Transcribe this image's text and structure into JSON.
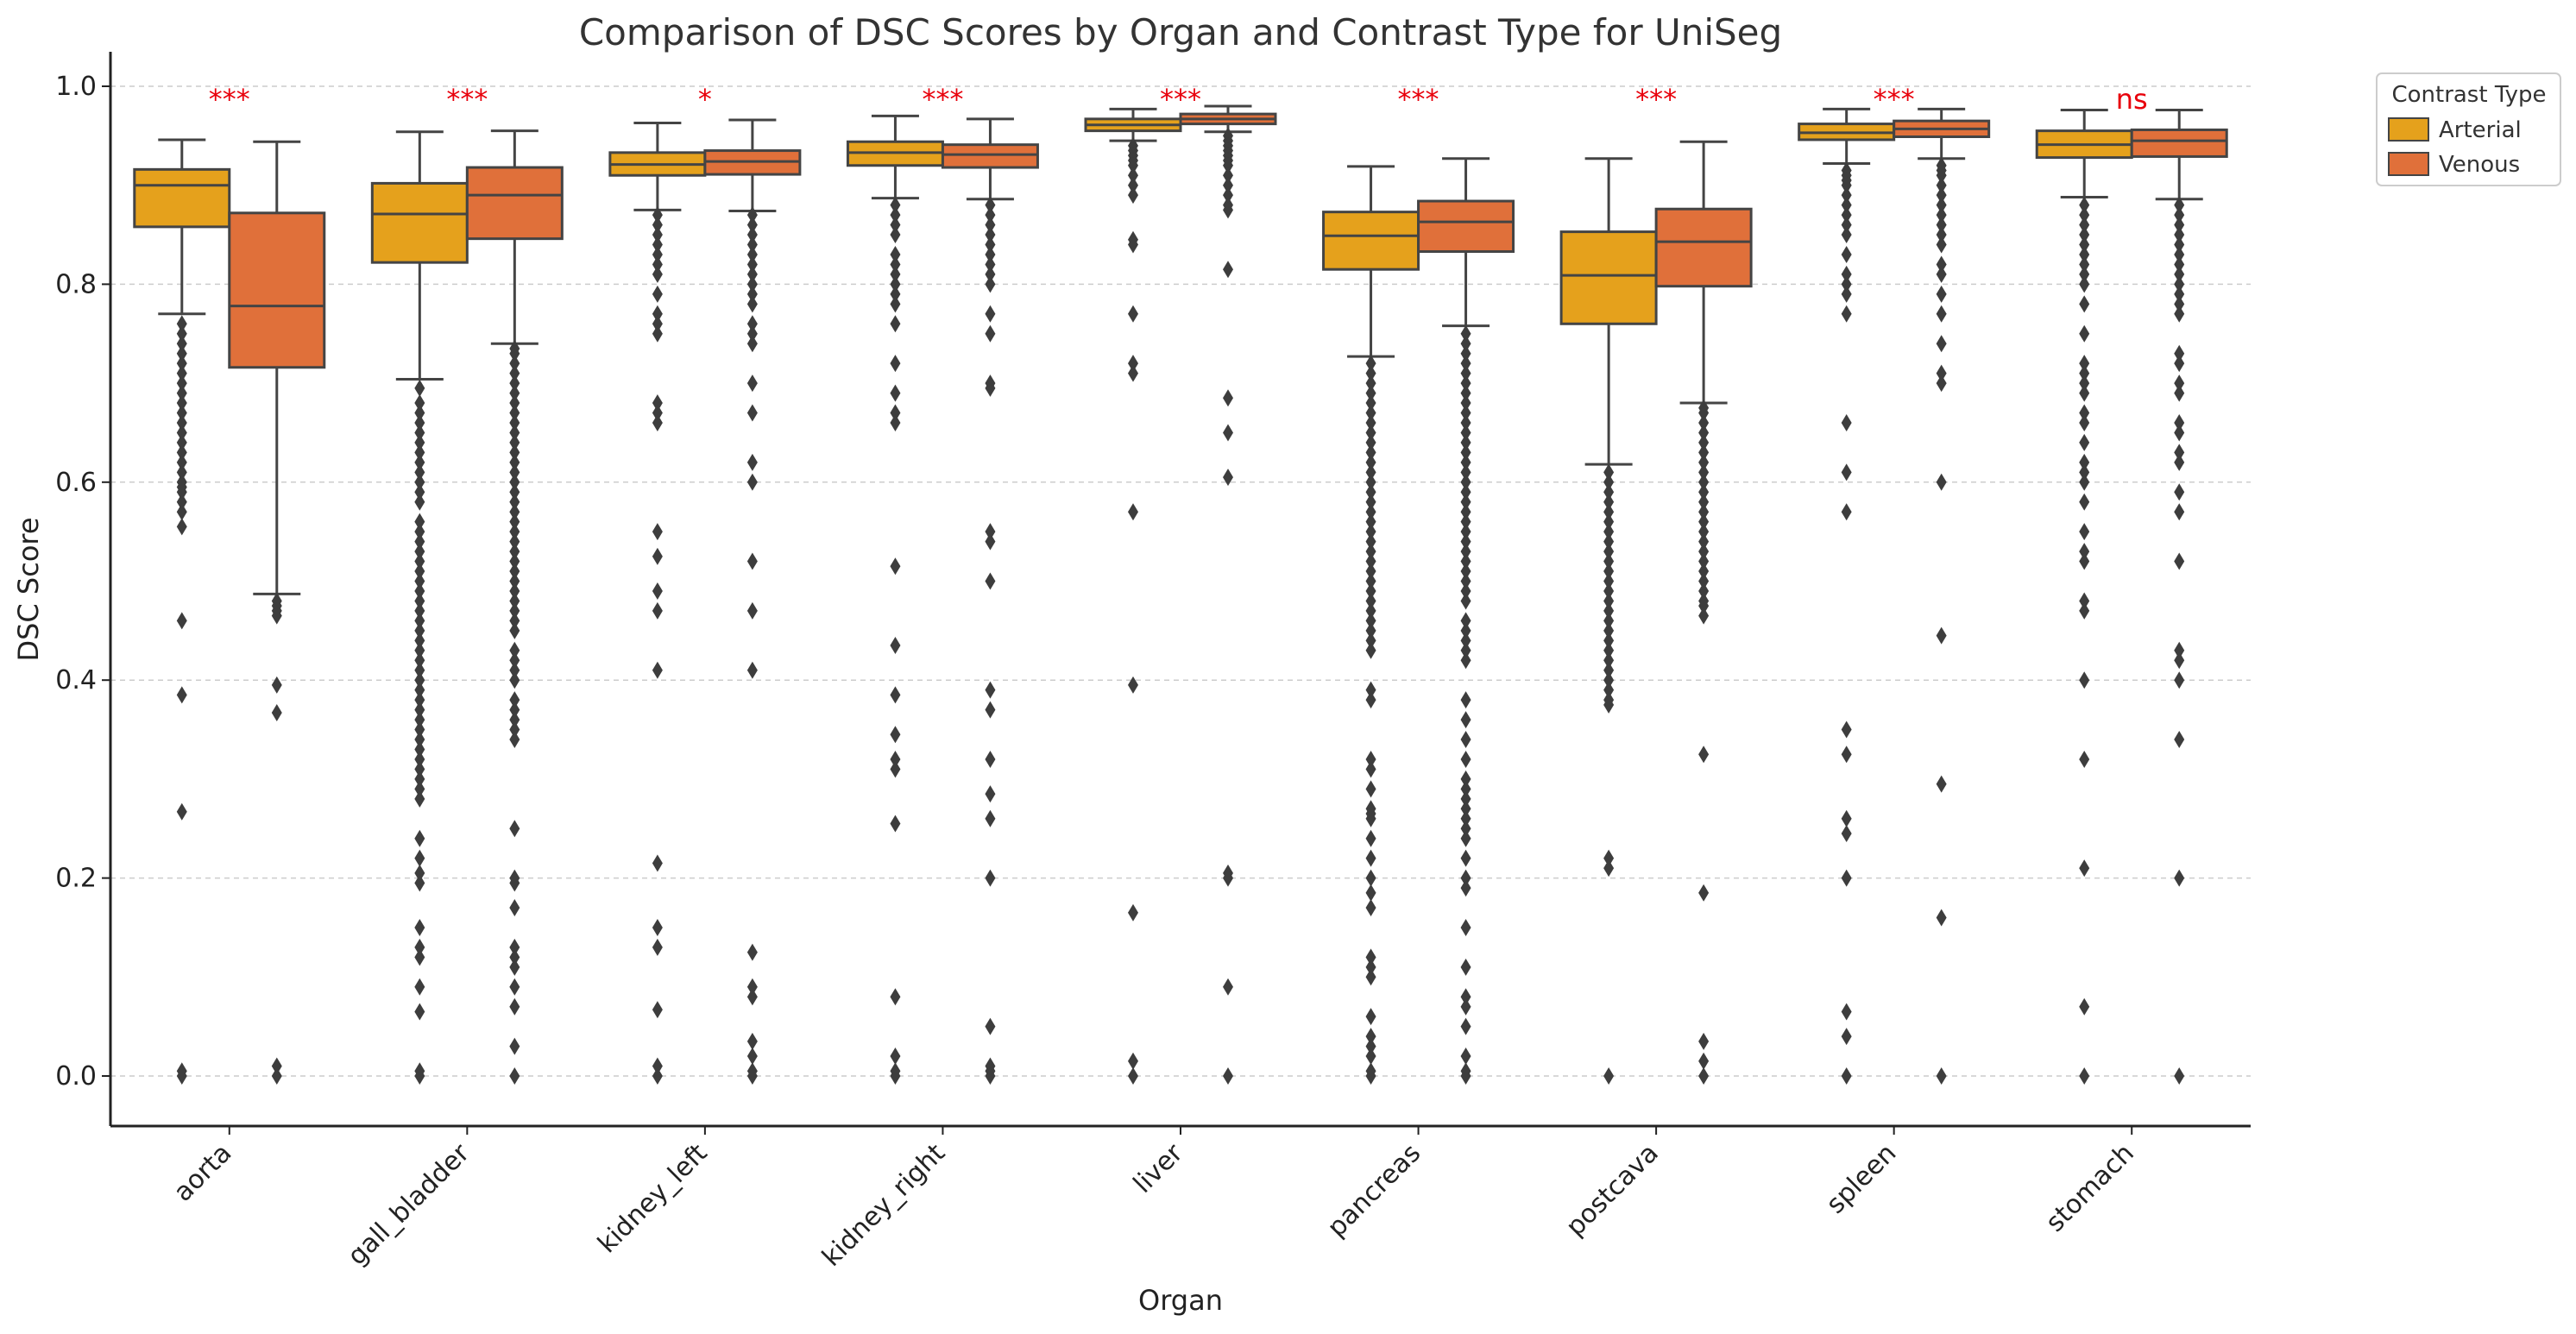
{
  "chart_data": {
    "type": "box",
    "title": "Comparison of DSC Scores by Organ and Contrast Type for UniSeg",
    "xlabel": "Organ",
    "ylabel": "DSC Score",
    "ylim": [
      -0.05,
      1.02
    ],
    "yticks": [
      "0.0",
      "0.2",
      "0.4",
      "0.6",
      "0.8",
      "1.0"
    ],
    "grid": "horizontal dashed",
    "legend": {
      "title": "Contrast Type",
      "placement": "outside top-right"
    },
    "categories": [
      "aorta",
      "gall_bladder",
      "kidney_left",
      "kidney_right",
      "liver",
      "pancreas",
      "postcava",
      "spleen",
      "stomach"
    ],
    "significance": [
      "***",
      "***",
      "*",
      "***",
      "***",
      "***",
      "***",
      "***",
      "ns"
    ],
    "series": [
      {
        "name": "Arterial",
        "color": "#e5a11c",
        "boxes": [
          {
            "q1": 0.858,
            "median": 0.9,
            "q3": 0.916,
            "whislo": 0.77,
            "whishi": 0.946,
            "outliers": [
              0.76,
              0.75,
              0.74,
              0.73,
              0.72,
              0.71,
              0.7,
              0.69,
              0.68,
              0.67,
              0.66,
              0.65,
              0.64,
              0.63,
              0.62,
              0.61,
              0.6,
              0.595,
              0.59,
              0.58,
              0.57,
              0.555,
              0.46,
              0.385,
              0.267,
              0.005,
              0.0
            ]
          },
          {
            "q1": 0.822,
            "median": 0.871,
            "q3": 0.902,
            "whislo": 0.704,
            "whishi": 0.954,
            "outliers": [
              0.695,
              0.68,
              0.67,
              0.66,
              0.65,
              0.64,
              0.63,
              0.62,
              0.61,
              0.6,
              0.59,
              0.58,
              0.56,
              0.55,
              0.54,
              0.53,
              0.52,
              0.51,
              0.5,
              0.49,
              0.48,
              0.47,
              0.46,
              0.45,
              0.44,
              0.43,
              0.42,
              0.41,
              0.4,
              0.39,
              0.38,
              0.37,
              0.36,
              0.35,
              0.34,
              0.33,
              0.32,
              0.31,
              0.3,
              0.29,
              0.28,
              0.24,
              0.22,
              0.205,
              0.195,
              0.15,
              0.13,
              0.12,
              0.09,
              0.065,
              0.005,
              0.0
            ]
          },
          {
            "q1": 0.91,
            "median": 0.921,
            "q3": 0.933,
            "whislo": 0.875,
            "whishi": 0.963,
            "outliers": [
              0.87,
              0.86,
              0.85,
              0.84,
              0.83,
              0.82,
              0.81,
              0.79,
              0.77,
              0.76,
              0.75,
              0.68,
              0.67,
              0.66,
              0.55,
              0.525,
              0.49,
              0.47,
              0.41,
              0.215,
              0.15,
              0.13,
              0.067,
              0.01,
              0.0
            ]
          },
          {
            "q1": 0.92,
            "median": 0.933,
            "q3": 0.944,
            "whislo": 0.887,
            "whishi": 0.97,
            "outliers": [
              0.88,
              0.87,
              0.86,
              0.85,
              0.83,
              0.82,
              0.81,
              0.8,
              0.79,
              0.78,
              0.76,
              0.72,
              0.69,
              0.67,
              0.66,
              0.515,
              0.435,
              0.385,
              0.345,
              0.32,
              0.31,
              0.255,
              0.08,
              0.02,
              0.005,
              0.0
            ]
          },
          {
            "q1": 0.955,
            "median": 0.961,
            "q3": 0.967,
            "whislo": 0.945,
            "whishi": 0.977,
            "outliers": [
              0.94,
              0.935,
              0.93,
              0.925,
              0.92,
              0.91,
              0.9,
              0.89,
              0.845,
              0.84,
              0.77,
              0.72,
              0.71,
              0.57,
              0.395,
              0.165,
              0.015,
              0.0
            ]
          },
          {
            "q1": 0.815,
            "median": 0.849,
            "q3": 0.873,
            "whislo": 0.727,
            "whishi": 0.919,
            "outliers": [
              0.72,
              0.71,
              0.7,
              0.69,
              0.68,
              0.67,
              0.66,
              0.65,
              0.64,
              0.63,
              0.62,
              0.61,
              0.6,
              0.59,
              0.58,
              0.57,
              0.56,
              0.55,
              0.54,
              0.53,
              0.52,
              0.51,
              0.5,
              0.49,
              0.48,
              0.47,
              0.46,
              0.45,
              0.44,
              0.43,
              0.39,
              0.38,
              0.32,
              0.31,
              0.29,
              0.27,
              0.265,
              0.26,
              0.24,
              0.22,
              0.2,
              0.185,
              0.17,
              0.12,
              0.11,
              0.1,
              0.06,
              0.04,
              0.03,
              0.02,
              0.005,
              0.0
            ]
          },
          {
            "q1": 0.76,
            "median": 0.809,
            "q3": 0.853,
            "whislo": 0.618,
            "whishi": 0.927,
            "outliers": [
              0.61,
              0.6,
              0.59,
              0.58,
              0.57,
              0.56,
              0.55,
              0.54,
              0.53,
              0.52,
              0.51,
              0.5,
              0.49,
              0.48,
              0.47,
              0.46,
              0.45,
              0.44,
              0.43,
              0.42,
              0.41,
              0.4,
              0.39,
              0.38,
              0.375,
              0.22,
              0.21,
              0.0
            ]
          },
          {
            "q1": 0.946,
            "median": 0.953,
            "q3": 0.962,
            "whislo": 0.922,
            "whishi": 0.977,
            "outliers": [
              0.915,
              0.91,
              0.905,
              0.9,
              0.89,
              0.88,
              0.87,
              0.86,
              0.85,
              0.83,
              0.81,
              0.8,
              0.79,
              0.77,
              0.66,
              0.61,
              0.57,
              0.35,
              0.325,
              0.26,
              0.245,
              0.2,
              0.065,
              0.04,
              0.0
            ]
          },
          {
            "q1": 0.928,
            "median": 0.941,
            "q3": 0.955,
            "whislo": 0.888,
            "whishi": 0.976,
            "outliers": [
              0.88,
              0.87,
              0.86,
              0.85,
              0.84,
              0.83,
              0.82,
              0.81,
              0.8,
              0.78,
              0.75,
              0.72,
              0.71,
              0.7,
              0.69,
              0.67,
              0.66,
              0.64,
              0.62,
              0.61,
              0.6,
              0.58,
              0.55,
              0.53,
              0.52,
              0.48,
              0.47,
              0.4,
              0.32,
              0.21,
              0.07,
              0.0
            ]
          }
        ]
      },
      {
        "name": "Venous",
        "color": "#e0703a",
        "boxes": [
          {
            "q1": 0.716,
            "median": 0.778,
            "q3": 0.872,
            "whislo": 0.487,
            "whishi": 0.944,
            "outliers": [
              0.48,
              0.475,
              0.47,
              0.465,
              0.395,
              0.367,
              0.01,
              0.0
            ]
          },
          {
            "q1": 0.846,
            "median": 0.89,
            "q3": 0.918,
            "whislo": 0.74,
            "whishi": 0.955,
            "outliers": [
              0.735,
              0.73,
              0.72,
              0.71,
              0.7,
              0.69,
              0.68,
              0.67,
              0.66,
              0.65,
              0.64,
              0.63,
              0.62,
              0.61,
              0.6,
              0.59,
              0.58,
              0.57,
              0.56,
              0.55,
              0.54,
              0.53,
              0.52,
              0.51,
              0.5,
              0.49,
              0.48,
              0.47,
              0.46,
              0.45,
              0.43,
              0.42,
              0.41,
              0.4,
              0.38,
              0.37,
              0.36,
              0.35,
              0.34,
              0.25,
              0.2,
              0.195,
              0.17,
              0.13,
              0.12,
              0.11,
              0.09,
              0.07,
              0.03,
              0.0
            ]
          },
          {
            "q1": 0.911,
            "median": 0.924,
            "q3": 0.935,
            "whislo": 0.874,
            "whishi": 0.966,
            "outliers": [
              0.87,
              0.86,
              0.85,
              0.84,
              0.83,
              0.82,
              0.81,
              0.8,
              0.79,
              0.78,
              0.76,
              0.75,
              0.74,
              0.7,
              0.67,
              0.62,
              0.6,
              0.52,
              0.47,
              0.41,
              0.125,
              0.09,
              0.08,
              0.035,
              0.02,
              0.005,
              0.0
            ]
          },
          {
            "q1": 0.918,
            "median": 0.931,
            "q3": 0.941,
            "whislo": 0.886,
            "whishi": 0.967,
            "outliers": [
              0.88,
              0.87,
              0.86,
              0.85,
              0.84,
              0.83,
              0.82,
              0.81,
              0.8,
              0.77,
              0.75,
              0.7,
              0.695,
              0.55,
              0.54,
              0.5,
              0.39,
              0.37,
              0.32,
              0.285,
              0.26,
              0.2,
              0.05,
              0.01,
              0.005,
              0.0
            ]
          },
          {
            "q1": 0.962,
            "median": 0.967,
            "q3": 0.972,
            "whislo": 0.954,
            "whishi": 0.98,
            "outliers": [
              0.95,
              0.945,
              0.94,
              0.935,
              0.93,
              0.925,
              0.92,
              0.91,
              0.9,
              0.89,
              0.88,
              0.875,
              0.815,
              0.685,
              0.65,
              0.605,
              0.205,
              0.2,
              0.09,
              0.0
            ]
          },
          {
            "q1": 0.833,
            "median": 0.863,
            "q3": 0.884,
            "whislo": 0.758,
            "whishi": 0.927,
            "outliers": [
              0.75,
              0.74,
              0.73,
              0.72,
              0.71,
              0.7,
              0.69,
              0.68,
              0.67,
              0.66,
              0.65,
              0.64,
              0.63,
              0.62,
              0.61,
              0.6,
              0.59,
              0.58,
              0.57,
              0.56,
              0.55,
              0.54,
              0.53,
              0.52,
              0.51,
              0.5,
              0.49,
              0.48,
              0.46,
              0.45,
              0.44,
              0.43,
              0.42,
              0.38,
              0.36,
              0.34,
              0.32,
              0.3,
              0.29,
              0.28,
              0.27,
              0.26,
              0.25,
              0.24,
              0.22,
              0.2,
              0.19,
              0.15,
              0.11,
              0.08,
              0.07,
              0.05,
              0.02,
              0.005,
              0.0
            ]
          },
          {
            "q1": 0.798,
            "median": 0.843,
            "q3": 0.876,
            "whislo": 0.68,
            "whishi": 0.944,
            "outliers": [
              0.675,
              0.67,
              0.66,
              0.65,
              0.64,
              0.63,
              0.62,
              0.61,
              0.6,
              0.59,
              0.58,
              0.57,
              0.56,
              0.55,
              0.54,
              0.53,
              0.52,
              0.51,
              0.5,
              0.49,
              0.48,
              0.475,
              0.465,
              0.325,
              0.185,
              0.035,
              0.015,
              0.0
            ]
          },
          {
            "q1": 0.949,
            "median": 0.957,
            "q3": 0.965,
            "whislo": 0.927,
            "whishi": 0.977,
            "outliers": [
              0.92,
              0.915,
              0.91,
              0.9,
              0.89,
              0.88,
              0.87,
              0.86,
              0.85,
              0.84,
              0.82,
              0.81,
              0.79,
              0.77,
              0.74,
              0.71,
              0.7,
              0.6,
              0.445,
              0.295,
              0.16,
              0.0
            ]
          },
          {
            "q1": 0.929,
            "median": 0.945,
            "q3": 0.956,
            "whislo": 0.886,
            "whishi": 0.976,
            "outliers": [
              0.88,
              0.87,
              0.86,
              0.85,
              0.84,
              0.83,
              0.82,
              0.81,
              0.8,
              0.79,
              0.78,
              0.77,
              0.73,
              0.72,
              0.7,
              0.69,
              0.66,
              0.65,
              0.63,
              0.62,
              0.59,
              0.57,
              0.52,
              0.43,
              0.42,
              0.4,
              0.34,
              0.2,
              0.0
            ]
          }
        ]
      }
    ]
  }
}
